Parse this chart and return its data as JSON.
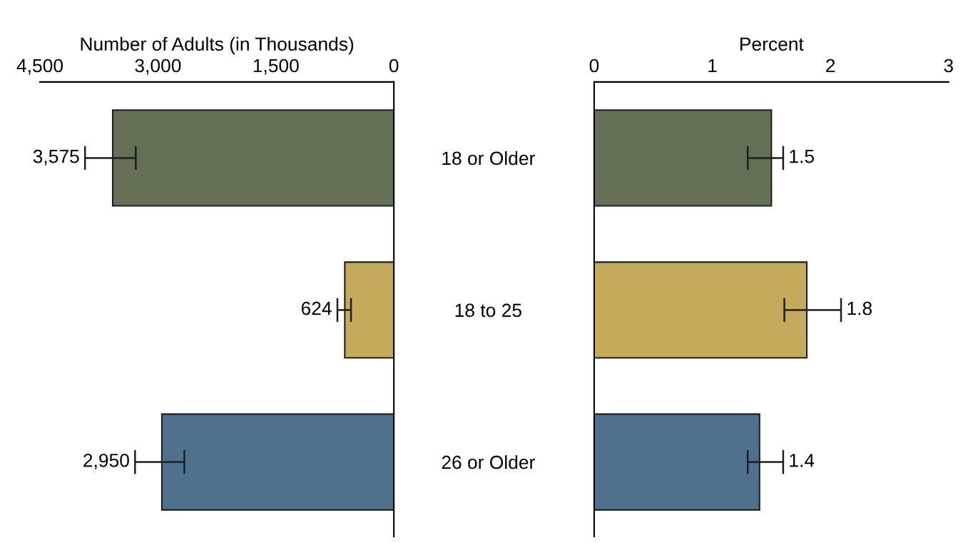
{
  "chart_data": [
    {
      "type": "bar",
      "orientation": "horizontal",
      "xlabel": "Number of Adults (in Thousands)",
      "categories": [
        null,
        null,
        null
      ],
      "tick_labels": "x",
      "values": [
        3575,
        624,
        2950
      ],
      "colors": [
        "#627055",
        "#c6aa5c",
        "#50718d"
      ],
      "errors": [
        [
          3282,
          3927
        ],
        [
          545,
          718
        ],
        [
          2664,
          3291
        ]
      ],
      "value_labels": [
        "3,575",
        "624",
        "2,950"
      ],
      "xlim": [
        4500,
        0
      ],
      "xticks": [
        {
          "value": 4500,
          "label": "4,500"
        },
        {
          "value": 3000,
          "label": "3,000"
        },
        {
          "value": 1500,
          "label": "1,500"
        },
        0
      ],
      "grid": false,
      "legend": false
    },
    {
      "type": "bar",
      "orientation": "horizontal",
      "xlabel": "Percent",
      "categories": [
        "18 or Older",
        "18 to 25",
        "26 or Older"
      ],
      "values": [
        1.5,
        1.8,
        1.4
      ],
      "colors": [
        "#627055",
        "#c6aa5c",
        "#50718d"
      ],
      "errors": [
        [
          1.3,
          1.6
        ],
        [
          1.61,
          2.09
        ],
        [
          1.3,
          1.6
        ]
      ],
      "data_labels": true,
      "xlim": [
        0,
        3
      ],
      "xticks": [
        0,
        1,
        2,
        3
      ],
      "grid": false,
      "legend": false
    }
  ]
}
